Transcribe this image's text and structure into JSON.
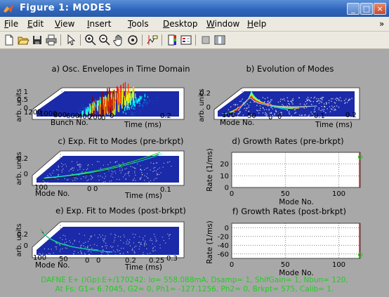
{
  "window": {
    "title": "Figure 1:   MODES",
    "controls": [
      "_",
      "□",
      "×"
    ]
  },
  "menu": [
    {
      "u": "F",
      "rest": "ile"
    },
    {
      "u": "E",
      "rest": "dit"
    },
    {
      "u": "V",
      "rest": "iew"
    },
    {
      "u": "I",
      "rest": "nsert"
    },
    {
      "u": "T",
      "rest": "ools"
    },
    {
      "u": "D",
      "rest": "esktop"
    },
    {
      "u": "W",
      "rest": "indow"
    },
    {
      "u": "H",
      "rest": "elp"
    }
  ],
  "menu_extra": "»",
  "toolbar": [
    "new-file-icon",
    "open-file-icon",
    "save-icon",
    "print-icon",
    "pointer-icon",
    "zoom-in-icon",
    "zoom-out-icon",
    "pan-hand-icon",
    "rotate-3d-icon",
    "data-cursor-icon",
    "colorbar-icon",
    "legend-icon",
    "hide-plot-tools-icon",
    "show-plot-tools-icon"
  ],
  "plots": {
    "a": {
      "title": "a) Osc. Envelopes in Time Domain",
      "zlabel": "arb. units",
      "xlabel": "Bunch No.",
      "ylabel": "Time (ms)",
      "zticks": [
        "1",
        "0.5",
        "0"
      ],
      "xticks": [
        "1200",
        "1000",
        "800",
        "600",
        "400",
        "200",
        "0"
      ],
      "yticks": [
        "0",
        "0.2"
      ]
    },
    "b": {
      "title": "b) Evolution of Modes",
      "zlabel": "arb. units",
      "xlabel": "Mode No.",
      "ylabel": "Time (ms)",
      "zticks": [
        "0.2",
        "0"
      ],
      "xticks": [
        "100",
        "50",
        "0"
      ],
      "yticks": [
        "0",
        "0.1",
        "0.2"
      ]
    },
    "c": {
      "title": "c) Exp. Fit to Modes (pre-brkpt)",
      "zlabel": "arb. units",
      "xlabel": "Mode No.",
      "ylabel": "Time (ms)",
      "zticks": [
        "0.2",
        "0"
      ],
      "xticks": [
        "100",
        "0"
      ],
      "yticks": [
        "0",
        "0.1"
      ]
    },
    "d": {
      "title": "d) Growth Rates (pre-brkpt)",
      "ylabel": "Rate  (1/ms)",
      "xlabel": "Mode No.",
      "yticks": [
        "20",
        "10",
        "0"
      ],
      "xticks": [
        "0",
        "50",
        "100"
      ]
    },
    "e": {
      "title": "e) Exp. Fit to Modes (post-brkpt)",
      "zlabel": "arb. units",
      "xlabel": "Mode No.",
      "ylabel": "Time (ms)",
      "zticks": [
        "0.2",
        "0"
      ],
      "xticks": [
        "100",
        "50",
        "0"
      ],
      "yticks": [
        "0",
        "0.2",
        "0.25",
        "0.3"
      ]
    },
    "f": {
      "title": "f) Growth Rates (post-brkpt)",
      "ylabel": "Rate  (1/ms)",
      "xlabel": "Mode No.",
      "yticks": [
        "0",
        "-20",
        "-40",
        "-60"
      ],
      "xticks": [
        "0",
        "50",
        "100"
      ]
    }
  },
  "chart_data": [
    {
      "type": "scatter",
      "title": "d) Growth Rates (pre-brkpt)",
      "xlabel": "Mode No.",
      "ylabel": "Rate  (1/ms)",
      "xlim": [
        0,
        120
      ],
      "ylim": [
        0,
        30
      ],
      "grid": true,
      "x": [
        120
      ],
      "y": [
        26
      ]
    },
    {
      "type": "scatter",
      "title": "f) Growth Rates (post-brkpt)",
      "xlabel": "Mode No.",
      "ylabel": "Rate  (1/ms)",
      "xlim": [
        0,
        120
      ],
      "ylim": [
        -70,
        10
      ],
      "grid": true,
      "x": [
        120
      ],
      "y": [
        -62
      ]
    }
  ],
  "footer": {
    "line1": "DAFNE E+ (iGp):E+/170242:  Io= 558.088mA,  Dsamp= 1,  ShifGain= 1,  Nbun= 120,",
    "line2": "At Fs:  G1= 6.7045,  G2= 0,  Ph1= -127.1256,  Ph2= 0,  Brkpt= 575,  Calib= 1."
  },
  "colors": {
    "title_bar": "#2f66bd",
    "figure_bg": "#a8a8a8",
    "axes_bg": "#ffffff",
    "footer_text": "#22cc22",
    "marker": "#22cc22",
    "marker_line": "#dd2222"
  }
}
